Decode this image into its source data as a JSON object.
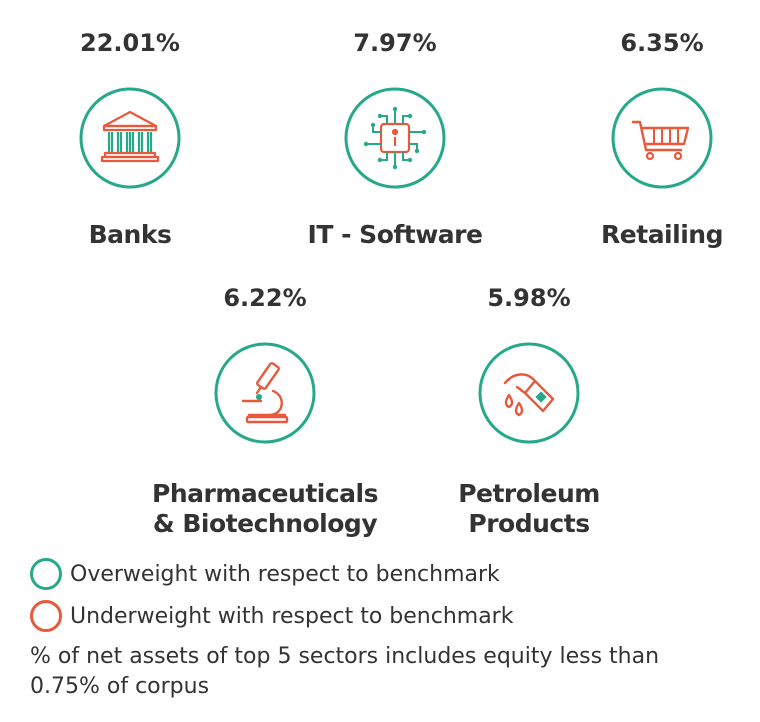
{
  "sectors": [
    {
      "name": "Banks",
      "weight": "22.01%",
      "icon": "bank-icon",
      "status": "overweight"
    },
    {
      "name": "IT - Software",
      "weight": "7.97%",
      "icon": "chip-icon",
      "status": "overweight"
    },
    {
      "name": "Retailing",
      "weight": "6.35%",
      "icon": "shopping-cart-icon",
      "status": "overweight"
    },
    {
      "name_line1": "Pharmaceuticals",
      "name_line2": "& Biotechnology",
      "weight": "6.22%",
      "icon": "microscope-icon",
      "status": "overweight"
    },
    {
      "name_line1": "Petroleum",
      "name_line2": "Products",
      "weight": "5.98%",
      "icon": "fuel-nozzle-icon",
      "status": "overweight"
    }
  ],
  "legend": {
    "overweight": "Overweight with respect to benchmark",
    "underweight": "Underweight with respect to benchmark"
  },
  "note": {
    "line1": "% of net assets of top 5 sectors includes equity less than",
    "line2": "0.75% of corpus"
  },
  "colors": {
    "overweight": "#26a98b",
    "underweight": "#e8593c",
    "icon_accent": "#e8593c",
    "text": "#333333"
  }
}
